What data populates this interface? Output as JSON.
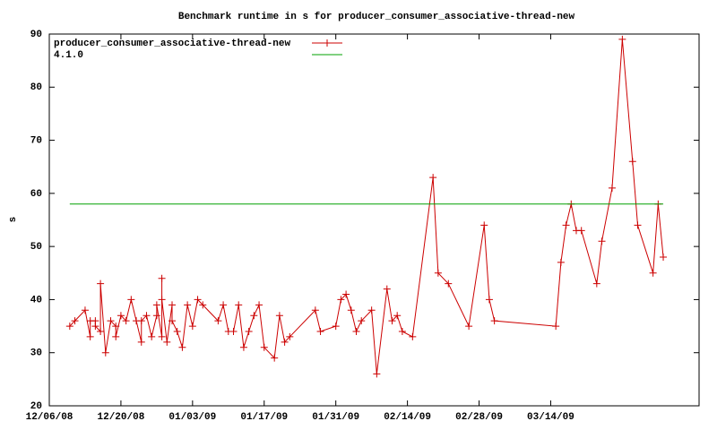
{
  "chart_data": {
    "type": "line",
    "title": "Benchmark runtime in s for producer_consumer_associative-thread-new",
    "y_label": "s",
    "ylim": [
      20,
      90
    ],
    "yticks": [
      20,
      30,
      40,
      50,
      60,
      70,
      80,
      90
    ],
    "xlim": [
      "12/06/08",
      "04/12/09"
    ],
    "xticks": [
      "12/06/08",
      "12/20/08",
      "01/03/09",
      "01/17/09",
      "01/31/09",
      "02/14/09",
      "02/28/09",
      "03/14/09"
    ],
    "grid": false,
    "legend": "top-left",
    "series": [
      {
        "name": "producer_consumer_associative-thread-new",
        "color": "#cc0000",
        "marker": "plus",
        "x": [
          "12/10/08",
          "12/11/08",
          "12/13/08",
          "12/14/08",
          "12/14/08",
          "12/15/08",
          "12/15/08",
          "12/16/08",
          "12/16/08",
          "12/17/08",
          "12/18/08",
          "12/19/08",
          "12/19/08",
          "12/20/08",
          "12/21/08",
          "12/22/08",
          "12/23/08",
          "12/24/08",
          "12/24/08",
          "12/25/08",
          "12/26/08",
          "12/27/08",
          "12/27/08",
          "12/28/08",
          "12/28/08",
          "12/28/08",
          "12/29/08",
          "12/30/08",
          "12/30/08",
          "12/31/08",
          "01/01/09",
          "01/02/09",
          "01/03/09",
          "01/04/09",
          "01/05/09",
          "01/08/09",
          "01/09/09",
          "01/10/09",
          "01/11/09",
          "01/12/09",
          "01/13/09",
          "01/14/09",
          "01/15/09",
          "01/16/09",
          "01/17/09",
          "01/19/09",
          "01/20/09",
          "01/21/09",
          "01/22/09",
          "01/27/09",
          "01/28/09",
          "01/31/09",
          "02/01/09",
          "02/02/09",
          "02/03/09",
          "02/04/09",
          "02/05/09",
          "02/07/09",
          "02/08/09",
          "02/10/09",
          "02/11/09",
          "02/12/09",
          "02/13/09",
          "02/15/09",
          "02/19/09",
          "02/20/09",
          "02/22/09",
          "02/26/09",
          "03/01/09",
          "03/02/09",
          "03/03/09",
          "03/15/09",
          "03/16/09",
          "03/17/09",
          "03/18/09",
          "03/19/09",
          "03/20/09",
          "03/23/09",
          "03/24/09",
          "03/26/09",
          "03/28/09",
          "03/30/09",
          "03/31/09",
          "04/03/09",
          "04/04/09",
          "04/05/09"
        ],
        "values": [
          35,
          36,
          38,
          33,
          36,
          36,
          35,
          34,
          43,
          30,
          36,
          35,
          33,
          37,
          36,
          40,
          36,
          32,
          36,
          37,
          33,
          37,
          39,
          33,
          44,
          40,
          32,
          39,
          36,
          34,
          31,
          39,
          35,
          40,
          39,
          36,
          39,
          34,
          34,
          39,
          31,
          34,
          37,
          39,
          31,
          29,
          37,
          32,
          33,
          38,
          34,
          35,
          40,
          41,
          38,
          34,
          36,
          38,
          26,
          42,
          36,
          37,
          34,
          33,
          63,
          45,
          43,
          35,
          54,
          40,
          36,
          35,
          47,
          54,
          58,
          53,
          53,
          43,
          51,
          61,
          89,
          66,
          54,
          45,
          58,
          48
        ]
      },
      {
        "name": "4.1.0",
        "color": "#00a000",
        "x": [
          "12/10/08",
          "04/05/09"
        ],
        "values": [
          58,
          58
        ]
      }
    ]
  }
}
